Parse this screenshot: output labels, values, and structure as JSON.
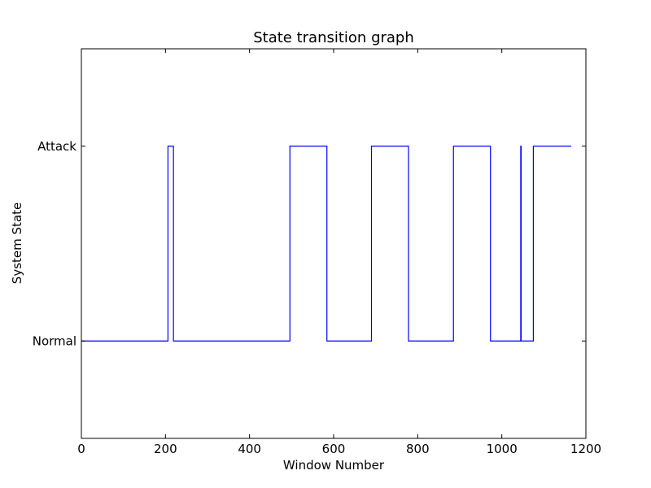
{
  "chart_data": {
    "type": "line",
    "title": "State transition graph",
    "xlabel": "Window Number",
    "ylabel": "System State",
    "xlim": [
      0,
      1200
    ],
    "ylim": [
      -0.5,
      1.5
    ],
    "xticks": [
      0,
      200,
      400,
      600,
      800,
      1000,
      1200
    ],
    "yticks": [
      {
        "value": 0,
        "label": "Normal"
      },
      {
        "value": 1,
        "label": "Attack"
      }
    ],
    "grid": false,
    "line_color": "#0000ff",
    "series": [
      {
        "step": "post",
        "x": [
          0,
          206,
          219,
          496,
          584,
          690,
          778,
          885,
          973,
          1045,
          1046,
          1075,
          1165
        ],
        "y": [
          0,
          1,
          0,
          1,
          0,
          1,
          0,
          1,
          0,
          1,
          0,
          1,
          1
        ]
      }
    ]
  }
}
